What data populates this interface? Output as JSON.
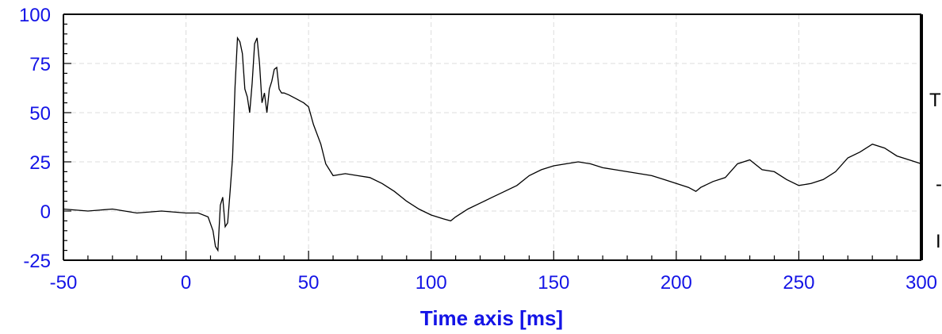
{
  "chart_data": {
    "type": "line",
    "xlabel": "Time axis [ms]",
    "ylabel": "",
    "xlim": [
      -50,
      300
    ],
    "ylim": [
      -25,
      100
    ],
    "x_ticks": [
      -50,
      0,
      50,
      100,
      150,
      200,
      250,
      300
    ],
    "y_ticks": [
      -25,
      0,
      25,
      50,
      75,
      100
    ],
    "grid": true,
    "legend_placement": "right",
    "legend_visible_text": [
      "T",
      "-",
      "I"
    ],
    "colors": {
      "axis_text": "#1414e6",
      "line": "#000000",
      "grid": "#dcdcdc"
    },
    "series": [
      {
        "x": [
          -50,
          -40,
          -30,
          -20,
          -10,
          0,
          5,
          9,
          11,
          12,
          13,
          14,
          15,
          16,
          17,
          18,
          19,
          20,
          21,
          22,
          23,
          24,
          25,
          26,
          27,
          28,
          29,
          30,
          31,
          32,
          33,
          34,
          35,
          36,
          37,
          38,
          39,
          40,
          42,
          45,
          48,
          50,
          52,
          55,
          57,
          60,
          65,
          70,
          75,
          80,
          85,
          90,
          95,
          100,
          105,
          108,
          110,
          115,
          120,
          125,
          130,
          135,
          140,
          145,
          150,
          155,
          160,
          165,
          170,
          175,
          180,
          185,
          190,
          195,
          200,
          205,
          208,
          210,
          215,
          220,
          225,
          230,
          235,
          240,
          245,
          250,
          255,
          260,
          265,
          270,
          275,
          280,
          285,
          290,
          295,
          300
        ],
        "y": [
          1,
          0,
          1,
          -1,
          0,
          -1,
          -1,
          -3,
          -10,
          -18,
          -20,
          3,
          7,
          -8,
          -6,
          10,
          27,
          63,
          88,
          86,
          80,
          62,
          58,
          50,
          65,
          85,
          88,
          75,
          55,
          60,
          50,
          62,
          66,
          72,
          73,
          62,
          60,
          60,
          59,
          57,
          55,
          53,
          44,
          34,
          24,
          18,
          19,
          18,
          17,
          14,
          10,
          5,
          1,
          -2,
          -4,
          -5,
          -3,
          1,
          4,
          7,
          10,
          13,
          18,
          21,
          23,
          24,
          25,
          24,
          22,
          21,
          20,
          19,
          18,
          16,
          14,
          12,
          10,
          12,
          15,
          17,
          24,
          26,
          21,
          20,
          16,
          13,
          14,
          16,
          20,
          27,
          30,
          34,
          32,
          28,
          26,
          24
        ]
      }
    ]
  }
}
